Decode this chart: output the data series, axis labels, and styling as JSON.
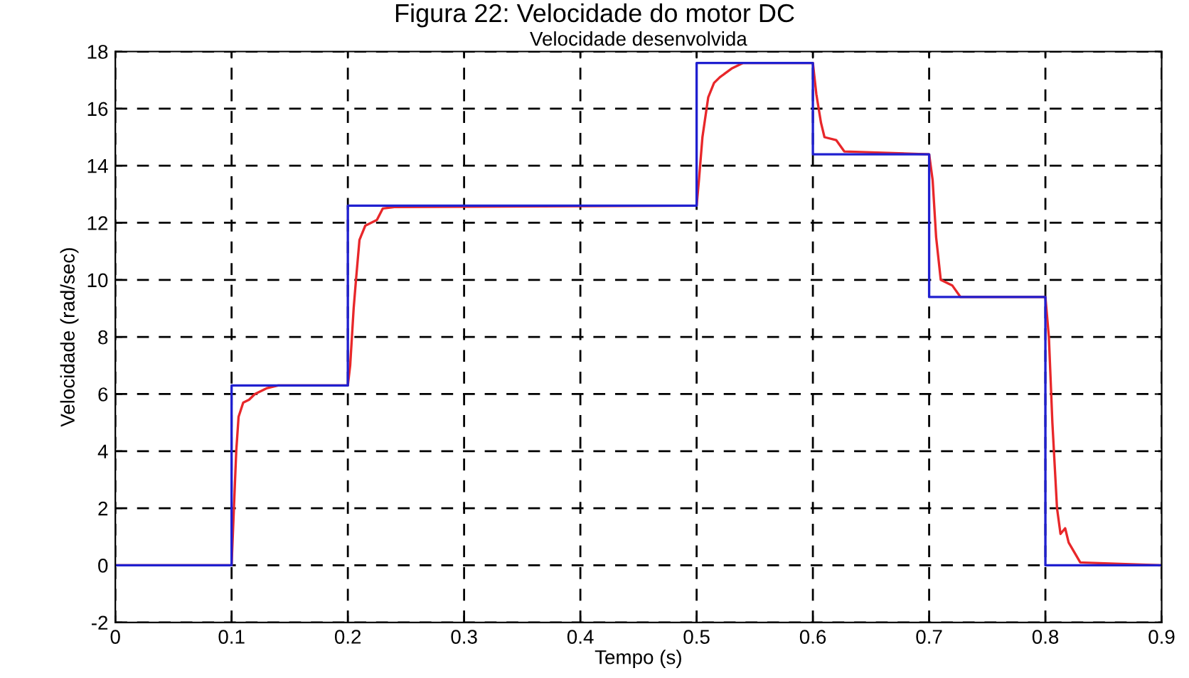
{
  "chart_data": {
    "type": "line",
    "title": "Figura 22: Velocidade do motor DC",
    "subtitle": "Velocidade desenvolvida",
    "xlabel": "Tempo (s)",
    "ylabel": "Velocidade (rad/sec)",
    "xlim": [
      0,
      0.9
    ],
    "xticks": [
      0,
      0.1,
      0.2,
      0.3,
      0.4,
      0.5,
      0.6,
      0.7,
      0.8,
      0.9
    ],
    "ylim": [
      -2,
      18
    ],
    "yticks": [
      -2,
      0,
      2,
      4,
      6,
      8,
      10,
      12,
      14,
      16,
      18
    ],
    "grid": true,
    "series": [
      {
        "color": "#e8272a",
        "x": [
          0,
          0.1,
          0.102,
          0.104,
          0.106,
          0.11,
          0.115,
          0.12,
          0.13,
          0.14,
          0.2,
          0.202,
          0.205,
          0.207,
          0.21,
          0.215,
          0.22,
          0.225,
          0.23,
          0.24,
          0.5,
          0.502,
          0.505,
          0.51,
          0.515,
          0.52,
          0.53,
          0.54,
          0.6,
          0.603,
          0.607,
          0.61,
          0.62,
          0.627,
          0.7,
          0.703,
          0.706,
          0.71,
          0.72,
          0.727,
          0.8,
          0.803,
          0.806,
          0.81,
          0.813,
          0.817,
          0.82,
          0.83,
          0.9
        ],
        "values": [
          0,
          0,
          2,
          4,
          5.2,
          5.7,
          5.8,
          6.0,
          6.2,
          6.3,
          6.3,
          7,
          9,
          10,
          11.4,
          11.9,
          12.0,
          12.1,
          12.5,
          12.55,
          12.6,
          13.5,
          15,
          16.4,
          16.9,
          17.1,
          17.4,
          17.6,
          17.6,
          16.5,
          15.5,
          15.0,
          14.9,
          14.5,
          14.4,
          13.5,
          11.5,
          10.0,
          9.8,
          9.4,
          9.4,
          8,
          5,
          2,
          1.1,
          1.3,
          0.8,
          0.1,
          0
        ]
      },
      {
        "type": "step",
        "color": "#2020d0",
        "x": [
          0,
          0.1,
          0.2,
          0.5,
          0.6,
          0.7,
          0.8,
          0.9
        ],
        "values": [
          0,
          6.3,
          12.6,
          17.6,
          14.4,
          9.4,
          0,
          0
        ]
      }
    ]
  }
}
